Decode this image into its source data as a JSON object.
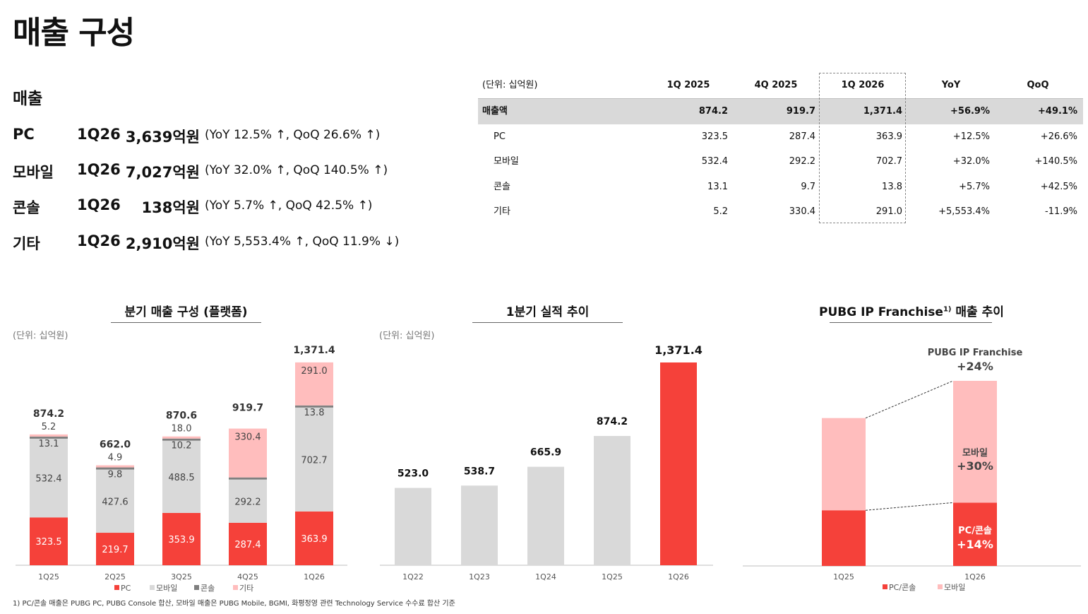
{
  "page_title": "매출 구성",
  "summary": {
    "heading": "매출",
    "rows": [
      {
        "category": "PC",
        "quarter": "1Q26",
        "amount": "3,639억원",
        "change": "(YoY 12.5% ↑, QoQ 26.6% ↑)"
      },
      {
        "category": "모바일",
        "quarter": "1Q26",
        "amount": "7,027억원",
        "change": "(YoY 32.0% ↑, QoQ 140.5% ↑)"
      },
      {
        "category": "콘솔",
        "quarter": "1Q26",
        "amount": "138억원",
        "change": "(YoY 5.7% ↑, QoQ 42.5% ↑)"
      },
      {
        "category": "기타",
        "quarter": "1Q26",
        "amount": "2,910억원",
        "change": "(YoY 5,553.4% ↑, QoQ 11.9% ↓)"
      }
    ]
  },
  "table": {
    "unit": "(단위: 십억원)",
    "columns": [
      "1Q 2025",
      "4Q 2025",
      "1Q 2026",
      "YoY",
      "QoQ"
    ],
    "rows": [
      {
        "label": "매출액",
        "values": [
          "874.2",
          "919.7",
          "1,371.4",
          "+56.9%",
          "+49.1%"
        ]
      },
      {
        "label": "PC",
        "values": [
          "323.5",
          "287.4",
          "363.9",
          "+12.5%",
          "+26.6%"
        ]
      },
      {
        "label": "모바일",
        "values": [
          "532.4",
          "292.2",
          "702.7",
          "+32.0%",
          "+140.5%"
        ]
      },
      {
        "label": "콘솔",
        "values": [
          "13.1",
          "9.7",
          "13.8",
          "+5.7%",
          "+42.5%"
        ]
      },
      {
        "label": "기타",
        "values": [
          "5.2",
          "330.4",
          "291.0",
          "+5,553.4%",
          "-11.9%"
        ]
      }
    ]
  },
  "colors": {
    "pc": "#f5413a",
    "mobile": "#d9d9d9",
    "console": "#7f7f7f",
    "other": "#ffbdbd",
    "franchise_mobile": "#ffbdbd",
    "franchise_pc": "#f5413a"
  },
  "chart_data": [
    {
      "type": "bar",
      "stacked": true,
      "title": "분기 매출 구성 (플랫폼)",
      "unit": "(단위: 십억원)",
      "categories": [
        "1Q25",
        "2Q25",
        "3Q25",
        "4Q25",
        "1Q26"
      ],
      "series": [
        {
          "name": "PC",
          "values": [
            323.5,
            219.7,
            353.9,
            287.4,
            363.9
          ]
        },
        {
          "name": "모바일",
          "values": [
            532.4,
            427.6,
            488.5,
            292.2,
            702.7
          ]
        },
        {
          "name": "콘솔",
          "values": [
            13.1,
            9.8,
            10.2,
            9.7,
            13.8
          ]
        },
        {
          "name": "기타",
          "values": [
            5.2,
            4.9,
            18.0,
            330.4,
            291.0
          ]
        }
      ],
      "totals": [
        "874.2",
        "662.0",
        "870.6",
        "919.7",
        "1,371.4"
      ],
      "legend": [
        "PC",
        "모바일",
        "콘솔",
        "기타"
      ],
      "legend_position": "bottom",
      "ylim": [
        0,
        1400
      ]
    },
    {
      "type": "bar",
      "title": "1분기 실적 추이",
      "unit": "(단위: 십억원)",
      "categories": [
        "1Q22",
        "1Q23",
        "1Q24",
        "1Q25",
        "1Q26"
      ],
      "values": [
        523.0,
        538.7,
        665.9,
        874.2,
        1371.4
      ],
      "labels": [
        "523.0",
        "538.7",
        "665.9",
        "874.2",
        "1,371.4"
      ],
      "highlight_index": 4,
      "ylim": [
        0,
        1400
      ]
    },
    {
      "type": "bar",
      "stacked": true,
      "title": "PUBG IP Franchise",
      "title_sup": "1)",
      "title_suffix": " 매출 추이",
      "categories": [
        "1Q25",
        "1Q26"
      ],
      "series": [
        {
          "name": "PC/콘솔",
          "values": [
            0.32,
            0.364
          ]
        },
        {
          "name": "모바일",
          "values": [
            0.53,
            0.7
          ]
        }
      ],
      "annotations": {
        "total_label": "PUBG IP Franchise",
        "total_growth": "+24%",
        "mobile_label": "모바일",
        "mobile_growth": "+30%",
        "pc_label": "PC/콘솔",
        "pc_growth": "+14%"
      },
      "legend": [
        "PC/콘솔",
        "모바일"
      ],
      "legend_position": "bottom"
    }
  ],
  "footnote": "1) PC/콘솔 매출은 PUBG PC, PUBG Console 합산, 모바일 매출은 PUBG Mobile, BGMI, 화평정영 관련 Technology Service 수수료 합산 기준"
}
